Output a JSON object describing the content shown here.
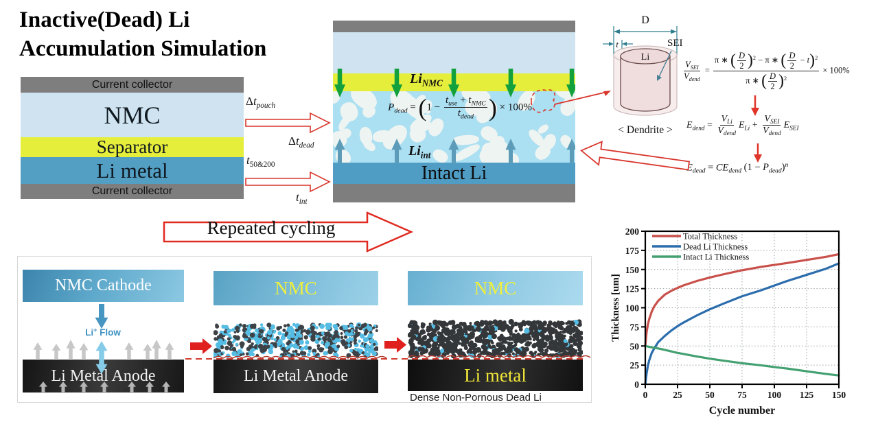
{
  "title": {
    "line1": "Inactive(Dead) Li",
    "line2": "Accumulation Simulation"
  },
  "left_stack": {
    "layers": [
      "Current collector",
      "NMC",
      "Separator",
      "Li metal",
      "Current collector"
    ]
  },
  "transfer": {
    "dt_pouch": [
      "Δ",
      {
        "v": "t"
      },
      {
        "sub": [
          {
            "v": "pouch"
          }
        ]
      }
    ],
    "dt_dead": [
      "Δ",
      {
        "v": "t"
      },
      {
        "sub": [
          {
            "v": "dead"
          }
        ]
      }
    ],
    "t_50_200": [
      {
        "v": "t"
      },
      {
        "sub": [
          "50&200"
        ]
      }
    ],
    "t_int": [
      {
        "v": "t"
      },
      {
        "sub": [
          {
            "v": "int"
          }
        ]
      }
    ]
  },
  "center_cell": {
    "li_nmc": [
      {
        "v": "Li"
      },
      {
        "sub": [
          {
            "v": "NMC"
          }
        ]
      }
    ],
    "li_int": [
      {
        "v": "Li"
      },
      {
        "sub": [
          {
            "v": "int"
          }
        ]
      }
    ],
    "intact_label": "Intact Li",
    "p_dead_eq": [
      {
        "v": "P"
      },
      {
        "sub": [
          {
            "v": "dead"
          }
        ]
      },
      " = ",
      {
        "big": true,
        "par": [
          "1 − ",
          {
            "frac": {
              "n": [
                {
                  "v": "t"
                },
                {
                  "sub": [
                    {
                      "v": "use"
                    }
                  ]
                },
                " + ",
                {
                  "v": "t"
                },
                {
                  "sub": [
                    {
                      "v": "NMC"
                    }
                  ]
                }
              ],
              "d": [
                {
                  "v": "t"
                },
                {
                  "sub": [
                    {
                      "v": "dead"
                    }
                  ]
                }
              ]
            }
          }
        ]
      },
      " × 100%"
    ]
  },
  "dendrite": {
    "d_label": "D",
    "t_label": "t",
    "li_label": "Li",
    "sei_label": "SEI",
    "caption": "< Dendrite >"
  },
  "equations": {
    "vsei": [
      {
        "frac": {
          "n": [
            {
              "v": "V"
            },
            {
              "sub": [
                {
                  "v": "SEI"
                }
              ]
            }
          ],
          "d": [
            {
              "v": "V"
            },
            {
              "sub": [
                {
                  "v": "dend"
                }
              ]
            }
          ]
        }
      },
      " = ",
      {
        "frac": {
          "n": [
            "π ∗ ",
            {
              "par": [
                {
                  "frac": {
                    "n": [
                      {
                        "v": "D"
                      }
                    ],
                    "d": [
                      "2"
                    ]
                  }
                }
              ]
            },
            {
              "sup": [
                "2"
              ]
            },
            " − π ∗ ",
            {
              "par": [
                {
                  "frac": {
                    "n": [
                      {
                        "v": "D"
                      }
                    ],
                    "d": [
                      "2"
                    ]
                  }
                },
                " − ",
                {
                  "v": "t"
                }
              ]
            },
            {
              "sup": [
                "2"
              ]
            }
          ],
          "d": [
            "π ∗ ",
            {
              "par": [
                {
                  "frac": {
                    "n": [
                      {
                        "v": "D"
                      }
                    ],
                    "d": [
                      "2"
                    ]
                  }
                }
              ]
            },
            {
              "sup": [
                "2"
              ]
            }
          ]
        }
      },
      " × 100%"
    ],
    "edend": [
      {
        "v": "E"
      },
      {
        "sub": [
          {
            "v": "dend"
          }
        ]
      },
      " = ",
      {
        "frac": {
          "n": [
            {
              "v": "V"
            },
            {
              "sub": [
                {
                  "v": "Li"
                }
              ]
            }
          ],
          "d": [
            {
              "v": "V"
            },
            {
              "sub": [
                {
                  "v": "dend"
                }
              ]
            }
          ]
        }
      },
      {
        "v": "E"
      },
      {
        "sub": [
          {
            "v": "Li"
          }
        ]
      },
      " + ",
      {
        "frac": {
          "n": [
            {
              "v": "V"
            },
            {
              "sub": [
                {
                  "v": "SEI"
                }
              ]
            }
          ],
          "d": [
            {
              "v": "V"
            },
            {
              "sub": [
                {
                  "v": "dend"
                }
              ]
            }
          ]
        }
      },
      {
        "v": "E"
      },
      {
        "sub": [
          {
            "v": "SEI"
          }
        ]
      }
    ],
    "edead": [
      {
        "v": "E"
      },
      {
        "sub": [
          {
            "v": "dead"
          }
        ]
      },
      " = ",
      {
        "v": "CE"
      },
      {
        "sub": [
          {
            "v": "dend"
          }
        ]
      },
      " ",
      {
        "par": [
          "1 − ",
          {
            "v": "P"
          },
          {
            "sub": [
              {
                "v": "dead"
              }
            ]
          }
        ]
      },
      {
        "sup": [
          {
            "v": "n"
          }
        ]
      }
    ]
  },
  "cycling_arrow": {
    "label": "Repeated cycling"
  },
  "process_panels": {
    "panel1": {
      "cathode": "NMC Cathode",
      "flow_tokens": [
        "Li",
        {
          "sup": [
            "+"
          ]
        },
        " Flow"
      ],
      "anode": "Li Metal Anode"
    },
    "panel2": {
      "cathode": "NMC",
      "anode": "Li Metal Anode"
    },
    "panel3": {
      "cathode": "NMC",
      "anode": "Li metal",
      "caption": "Dense Non-Pornous Dead Li"
    }
  },
  "textures": {
    "dead_li_bg": "#abdff2",
    "dead_li_blob": "#eef4f1",
    "porous_dark_dot": "#3d4247",
    "porous_cyan_dot": "#55bde4",
    "dense_dark_dot": "#34373a",
    "green_flux_arrow": "#12a13c",
    "blue_flux_arrow": "#5d9cb8",
    "red_accent": "#d8352b",
    "gray_arrow": "#c7c7c7"
  },
  "chart_data": {
    "type": "line",
    "title": "",
    "xlabel": "Cycle number",
    "ylabel": "Thickness [um]",
    "xlim": [
      0,
      150
    ],
    "ylim": [
      0,
      200
    ],
    "xticks": [
      0,
      25,
      50,
      75,
      100,
      125,
      150
    ],
    "yticks": [
      0,
      25,
      50,
      75,
      100,
      125,
      150,
      175,
      200
    ],
    "grid": true,
    "legend_position": "top-left",
    "x": [
      0,
      1,
      2,
      3,
      5,
      7,
      10,
      15,
      20,
      25,
      30,
      40,
      50,
      60,
      75,
      90,
      100,
      110,
      125,
      140,
      150
    ],
    "series": [
      {
        "name": "Total Thickness",
        "color": "#c9504b",
        "values": [
          50,
          68,
          78,
          85,
          95,
          102,
          109,
          117,
          122,
          126,
          129.5,
          135,
          139.5,
          143.5,
          149,
          153.5,
          156,
          158.5,
          162.5,
          166.5,
          170
        ]
      },
      {
        "name": "Dead Li Thickness",
        "color": "#2b6cac",
        "values": [
          0,
          14,
          24,
          31,
          41,
          47,
          55,
          63,
          70,
          76,
          81,
          90,
          98,
          105,
          115,
          123,
          129,
          135,
          143,
          151,
          158
        ]
      },
      {
        "name": "Intact Li Thickness",
        "color": "#43a071",
        "values": [
          50,
          49.6,
          49.3,
          48.9,
          48.3,
          47.7,
          46.8,
          45,
          43,
          41,
          39.5,
          36.3,
          33.5,
          31,
          27.5,
          24.7,
          22.5,
          20.5,
          17,
          13.5,
          11.5
        ]
      }
    ]
  }
}
